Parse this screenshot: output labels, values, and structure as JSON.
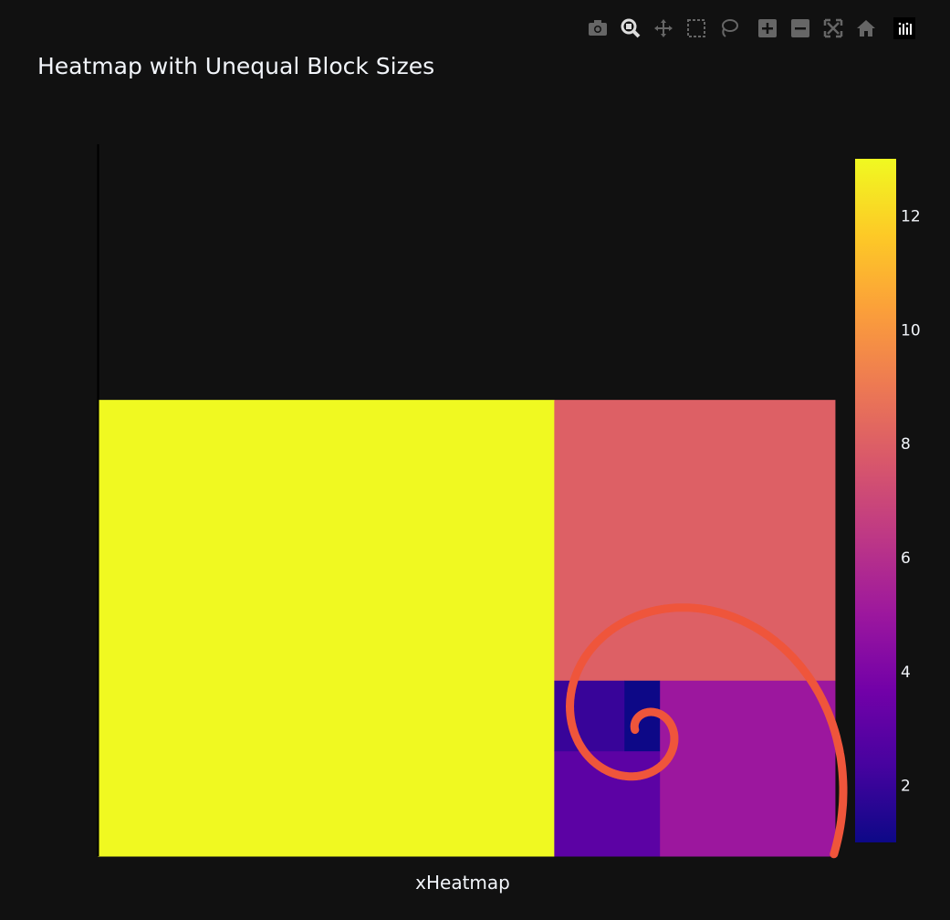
{
  "title": "Heatmap with Unequal Block Sizes",
  "toolbar": {
    "icons": [
      "camera-icon",
      "zoom-icon",
      "pan-icon",
      "box-select-icon",
      "lasso-select-icon",
      "zoom-in-icon",
      "zoom-out-icon",
      "autoscale-icon",
      "reset-axes-icon",
      "plotly-logo"
    ]
  },
  "chart_data": {
    "type": "heatmap",
    "title": "Heatmap with Unequal Block Sizes",
    "xlabel": "xHeatmap",
    "ylabel": "",
    "colorscale": "Plasma",
    "zrange": [
      1,
      13
    ],
    "colorbar_ticks": [
      "2",
      "4",
      "6",
      "8",
      "10",
      "12"
    ],
    "blocks": [
      {
        "x0": 0,
        "x1": 13,
        "y0": 0,
        "y1": 13,
        "z": 13
      },
      {
        "x0": 13,
        "x1": 21,
        "y0": 5,
        "y1": 13,
        "z": 8
      },
      {
        "x0": 16,
        "x1": 21,
        "y0": 0,
        "y1": 5,
        "z": 5
      },
      {
        "x0": 13,
        "x1": 16,
        "y0": 0,
        "y1": 3,
        "z": 3
      },
      {
        "x0": 13,
        "x1": 15,
        "y0": 3,
        "y1": 5,
        "z": 2
      },
      {
        "x0": 15,
        "x1": 16,
        "y0": 3,
        "y1": 5,
        "z": 1
      }
    ],
    "spiral": {
      "color": "#ef553b",
      "center": [
        15.6,
        3.6
      ],
      "b": 0.3063,
      "start_radius": 0.3,
      "end_radius": 13
    }
  }
}
